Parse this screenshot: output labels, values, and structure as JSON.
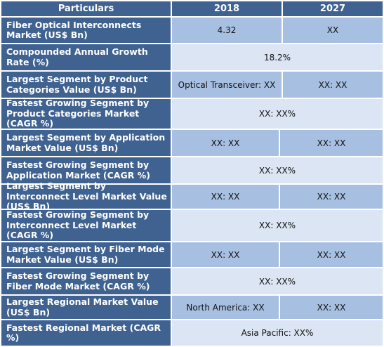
{
  "header": {
    "particulars": "Particulars",
    "year_2018": "2018",
    "year_2027": "2027"
  },
  "rows": [
    {
      "label": "Fiber Optical Interconnects Market (US$ Bn)",
      "v2018": "4.32",
      "v2027": "XX"
    },
    {
      "label": "Compounded Annual Growth Rate (%)",
      "value": "18.2%"
    },
    {
      "label": "Largest Segment by Product Categories Value (US$ Bn)",
      "v2018": "Optical Transceiver: XX",
      "v2027": "XX: XX"
    },
    {
      "label": "Fastest Growing Segment by Product Categories Market (CAGR %)",
      "value": "XX: XX%"
    },
    {
      "label": "Largest Segment by Application Market Value (US$ Bn)",
      "v2018": "XX: XX",
      "v2027": "XX: XX"
    },
    {
      "label": "Fastest Growing Segment by Application Market (CAGR %)",
      "value": "XX: XX%"
    },
    {
      "label": "Largest Segment by Interconnect Level Market Value (US$ Bn)",
      "v2018": "XX: XX",
      "v2027": "XX: XX"
    },
    {
      "label": "Fastest Growing Segment by Interconnect Level Market (CAGR %)",
      "value": "XX: XX%"
    },
    {
      "label": "Largest Segment by Fiber Mode Market Value (US$ Bn)",
      "v2018": "XX: XX",
      "v2027": "XX: XX"
    },
    {
      "label": "Fastest Growing Segment by Fiber Mode Market (CAGR %)",
      "value": "XX: XX%"
    },
    {
      "label": "Largest Regional Market Value (US$ Bn)",
      "v2018": "North America: XX",
      "v2027": "XX: XX"
    },
    {
      "label": "Fastest Regional Market (CAGR %)",
      "value": "Asia Pacific: XX%"
    }
  ],
  "colors": {
    "header_bg": "#3f6291",
    "header_text": "#ffffff",
    "cell_dark": "#a7bfe0",
    "cell_light": "#dbe5f3"
  }
}
